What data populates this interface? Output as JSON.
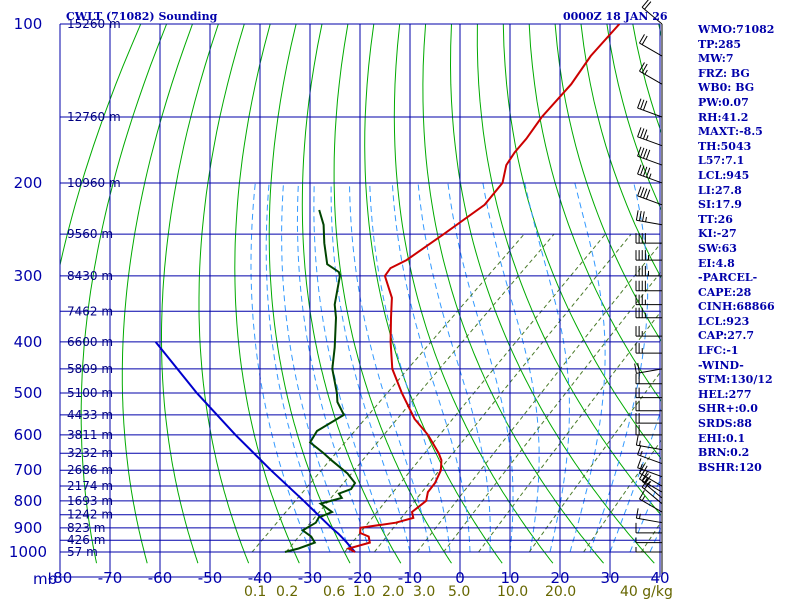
{
  "header": {
    "title": "CWLT (71082) Sounding",
    "datetime": "0000Z 18 JAN 26"
  },
  "indices": [
    "WMO:71082",
    "TP:285",
    "MW:7",
    "FRZ: BG",
    "WB0: BG",
    "PW:0.07",
    "RH:41.2",
    "MAXT:-8.5",
    "TH:5043",
    "L57:7.1",
    "LCL:945",
    "LI:27.8",
    "SI:17.9",
    "TT:26",
    "KI:-27",
    "SW:63",
    "EI:4.8",
    "-PARCEL-",
    "CAPE:28",
    "CINH:68866",
    "LCL:923",
    "CAP:27.7",
    "LFC:-1",
    "-WIND-",
    "STM:130/12",
    "HEL:277",
    "SHR+:0.0",
    "SRDS:88",
    "EHI:0.1",
    "BRN:0.2",
    "BSHR:120"
  ],
  "colors": {
    "grid": "#0000aa",
    "dry_adiabat": "#00aa00",
    "mixing_ratio": "#4a7a2a",
    "moist_adiabat": "#3399ff",
    "temperature": "#cc0000",
    "dewpoint": "#004400",
    "parcel": "#0000cc",
    "text": "#0000aa",
    "mixing_label": "#666600"
  },
  "chart_data": {
    "type": "skew-t",
    "pressure_axis_label": "mb",
    "pressure_levels": [
      100,
      200,
      300,
      400,
      500,
      600,
      700,
      800,
      900,
      1000
    ],
    "pressure_ticks": [
      100,
      150,
      200,
      250,
      300,
      350,
      400,
      450,
      500,
      550,
      600,
      650,
      700,
      750,
      800,
      850,
      900,
      950,
      1000
    ],
    "temperature_ticks": [
      -80,
      -70,
      -60,
      -50,
      -40,
      -30,
      -20,
      -10,
      0,
      10,
      20,
      30,
      40
    ],
    "xlim": [
      -80,
      40
    ],
    "ylim": [
      1000,
      100
    ],
    "height_labels": [
      {
        "p": 100,
        "label": "15260 m"
      },
      {
        "p": 150,
        "label": "12760 m"
      },
      {
        "p": 200,
        "label": "10960 m"
      },
      {
        "p": 250,
        "label": "9560 m"
      },
      {
        "p": 300,
        "label": "8430 m"
      },
      {
        "p": 350,
        "label": "7462 m"
      },
      {
        "p": 400,
        "label": "6600 m"
      },
      {
        "p": 450,
        "label": "5809 m"
      },
      {
        "p": 500,
        "label": "5100 m"
      },
      {
        "p": 550,
        "label": "4433 m"
      },
      {
        "p": 600,
        "label": "3811 m"
      },
      {
        "p": 650,
        "label": "3232 m"
      },
      {
        "p": 700,
        "label": "2686 m"
      },
      {
        "p": 750,
        "label": "2174 m"
      },
      {
        "p": 800,
        "label": "1693 m"
      },
      {
        "p": 850,
        "label": "1242 m"
      },
      {
        "p": 900,
        "label": "823 m"
      },
      {
        "p": 950,
        "label": "426 m"
      },
      {
        "p": 1000,
        "label": "57 m"
      }
    ],
    "mixing_ratio_labels": [
      "0.1",
      "0.2",
      "0.6",
      "1.0",
      "2.0",
      "3.0",
      "5.0",
      "10.0",
      "20.0",
      "40 g/kg"
    ],
    "mixing_ratio_values": [
      0.1,
      0.2,
      0.6,
      1.0,
      2.0,
      3.0,
      5.0,
      10.0,
      20.0,
      40.0
    ],
    "temperature_profile": [
      [
        1000,
        -21.0
      ],
      [
        985,
        -23.0
      ],
      [
        960,
        -20.0
      ],
      [
        935,
        -21.5
      ],
      [
        920,
        -24.0
      ],
      [
        900,
        -25.0
      ],
      [
        880,
        -19.0
      ],
      [
        862,
        -16.5
      ],
      [
        840,
        -18.0
      ],
      [
        800,
        -17.5
      ],
      [
        770,
        -19.0
      ],
      [
        740,
        -19.5
      ],
      [
        700,
        -21.0
      ],
      [
        670,
        -23.0
      ],
      [
        650,
        -25.0
      ],
      [
        600,
        -31.0
      ],
      [
        560,
        -37.0
      ],
      [
        500,
        -45.0
      ],
      [
        450,
        -52.0
      ],
      [
        400,
        -58.0
      ],
      [
        360,
        -63.0
      ],
      [
        330,
        -67.0
      ],
      [
        300,
        -73.0
      ],
      [
        290,
        -73.5
      ],
      [
        280,
        -72.0
      ],
      [
        250,
        -70.0
      ],
      [
        220,
        -68.0
      ],
      [
        200,
        -69.0
      ],
      [
        185,
        -72.0
      ],
      [
        175,
        -73.0
      ],
      [
        165,
        -73.5
      ],
      [
        150,
        -75.0
      ],
      [
        130,
        -76.0
      ],
      [
        115,
        -78.0
      ],
      [
        100,
        -79.0
      ]
    ],
    "dewpoint_profile": [
      [
        1000,
        -35.0
      ],
      [
        985,
        -33.0
      ],
      [
        960,
        -31.0
      ],
      [
        935,
        -33.0
      ],
      [
        910,
        -36.0
      ],
      [
        880,
        -35.0
      ],
      [
        860,
        -35.5
      ],
      [
        840,
        -34.0
      ],
      [
        810,
        -38.0
      ],
      [
        790,
        -35.0
      ],
      [
        775,
        -36.5
      ],
      [
        760,
        -35.0
      ],
      [
        740,
        -35.5
      ],
      [
        710,
        -39.0
      ],
      [
        670,
        -45.0
      ],
      [
        650,
        -48.0
      ],
      [
        620,
        -53.0
      ],
      [
        590,
        -54.0
      ],
      [
        550,
        -52.0
      ],
      [
        520,
        -56.0
      ],
      [
        500,
        -58.0
      ],
      [
        450,
        -64.0
      ],
      [
        410,
        -68.0
      ],
      [
        360,
        -74.0
      ],
      [
        340,
        -77.0
      ],
      [
        300,
        -82.0
      ],
      [
        295,
        -83.0
      ],
      [
        285,
        -87.0
      ],
      [
        260,
        -92.0
      ],
      [
        240,
        -96.0
      ],
      [
        225,
        -100.0
      ]
    ],
    "parcel_profile": [
      [
        1000,
        -21.0
      ],
      [
        980,
        -22.8
      ],
      [
        960,
        -24.6
      ],
      [
        940,
        -26.5
      ],
      [
        923,
        -28.2
      ],
      [
        900,
        -30.8
      ],
      [
        800,
        -42.0
      ],
      [
        700,
        -55.0
      ],
      [
        600,
        -69.5
      ],
      [
        500,
        -86.0
      ],
      [
        400,
        -105.0
      ]
    ],
    "wind_barbs": [
      {
        "p": 100,
        "dir": 310,
        "spd": 20
      },
      {
        "p": 115,
        "dir": 300,
        "spd": 20
      },
      {
        "p": 130,
        "dir": 300,
        "spd": 25
      },
      {
        "p": 150,
        "dir": 290,
        "spd": 30
      },
      {
        "p": 170,
        "dir": 290,
        "spd": 35
      },
      {
        "p": 185,
        "dir": 290,
        "spd": 40
      },
      {
        "p": 200,
        "dir": 290,
        "spd": 45
      },
      {
        "p": 220,
        "dir": 290,
        "spd": 40
      },
      {
        "p": 240,
        "dir": 280,
        "spd": 35
      },
      {
        "p": 260,
        "dir": 270,
        "spd": 40
      },
      {
        "p": 280,
        "dir": 270,
        "spd": 45
      },
      {
        "p": 300,
        "dir": 270,
        "spd": 45
      },
      {
        "p": 320,
        "dir": 270,
        "spd": 40
      },
      {
        "p": 340,
        "dir": 270,
        "spd": 35
      },
      {
        "p": 360,
        "dir": 270,
        "spd": 35
      },
      {
        "p": 390,
        "dir": 270,
        "spd": 25
      },
      {
        "p": 420,
        "dir": 270,
        "spd": 25
      },
      {
        "p": 450,
        "dir": 260,
        "spd": 20
      },
      {
        "p": 480,
        "dir": 270,
        "spd": 20
      },
      {
        "p": 510,
        "dir": 270,
        "spd": 20
      },
      {
        "p": 540,
        "dir": 270,
        "spd": 20
      },
      {
        "p": 570,
        "dir": 270,
        "spd": 20
      },
      {
        "p": 600,
        "dir": 270,
        "spd": 20
      },
      {
        "p": 640,
        "dir": 280,
        "spd": 15
      },
      {
        "p": 680,
        "dir": 290,
        "spd": 15
      },
      {
        "p": 720,
        "dir": 290,
        "spd": 15
      },
      {
        "p": 750,
        "dir": 300,
        "spd": 20
      },
      {
        "p": 770,
        "dir": 300,
        "spd": 25
      },
      {
        "p": 790,
        "dir": 310,
        "spd": 25
      },
      {
        "p": 810,
        "dir": 310,
        "spd": 20
      },
      {
        "p": 840,
        "dir": 300,
        "spd": 15
      },
      {
        "p": 880,
        "dir": 280,
        "spd": 15
      },
      {
        "p": 920,
        "dir": 270,
        "spd": 10
      },
      {
        "p": 960,
        "dir": 270,
        "spd": 5
      },
      {
        "p": 1000,
        "dir": 270,
        "spd": 5
      }
    ]
  }
}
